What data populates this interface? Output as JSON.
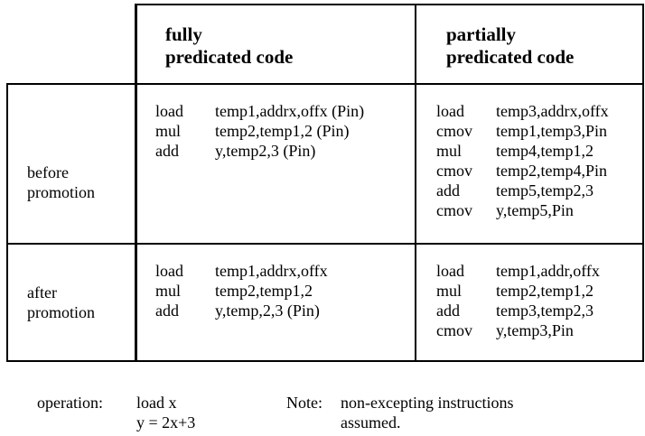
{
  "columns": [
    {
      "line1": "fully",
      "line2": "predicated code"
    },
    {
      "line1": "partially",
      "line2": "predicated code"
    }
  ],
  "rows": [
    {
      "label_line1": "before",
      "label_line2": "promotion",
      "fully": [
        {
          "op": "load",
          "args": "temp1,addrx,offx (Pin)"
        },
        {
          "op": "mul",
          "args": "temp2,temp1,2 (Pin)"
        },
        {
          "op": "add",
          "args": "y,temp2,3 (Pin)"
        }
      ],
      "partially": [
        {
          "op": "load",
          "args": "temp3,addrx,offx"
        },
        {
          "op": "cmov",
          "args": "temp1,temp3,Pin"
        },
        {
          "op": "mul",
          "args": "temp4,temp1,2"
        },
        {
          "op": "cmov",
          "args": "temp2,temp4,Pin"
        },
        {
          "op": "add",
          "args": "temp5,temp2,3"
        },
        {
          "op": "cmov",
          "args": "y,temp5,Pin"
        }
      ]
    },
    {
      "label_line1": "after",
      "label_line2": "promotion",
      "fully": [
        {
          "op": "load",
          "args": "temp1,addrx,offx"
        },
        {
          "op": "mul",
          "args": "temp2,temp1,2"
        },
        {
          "op": "add",
          "args": "y,temp,2,3 (Pin)"
        }
      ],
      "partially": [
        {
          "op": "load",
          "args": "temp1,addr,offx"
        },
        {
          "op": "mul",
          "args": "temp2,temp1,2"
        },
        {
          "op": "add",
          "args": "temp3,temp2,3"
        },
        {
          "op": "cmov",
          "args": "y,temp3,Pin"
        }
      ]
    }
  ],
  "footer": {
    "operation_label": "operation:",
    "operation_line1": "load x",
    "operation_line2": "y = 2x+3",
    "note_label": "Note:",
    "note_line1": "non-excepting instructions",
    "note_line2": "assumed."
  }
}
